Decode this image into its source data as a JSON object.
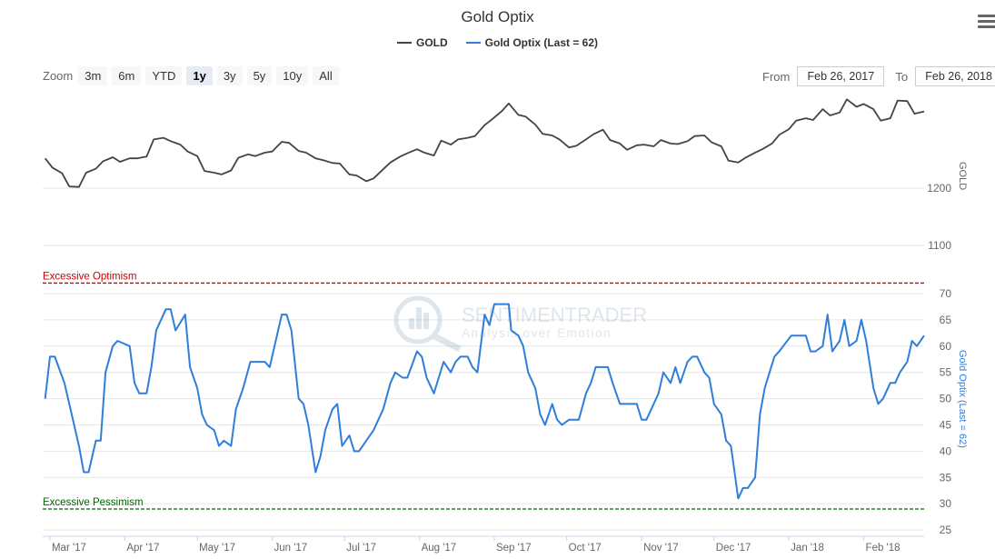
{
  "title": "Gold Optix",
  "legend": {
    "gold_label": "GOLD",
    "optix_label": "Gold Optix (Last = 62)"
  },
  "colors": {
    "gold": "#434348",
    "optix": "#2f7ed8",
    "optimism": "#cc0000",
    "pessimism": "#006600"
  },
  "zoom": {
    "label": "Zoom",
    "buttons": [
      "3m",
      "6m",
      "YTD",
      "1y",
      "3y",
      "5y",
      "10y",
      "All"
    ],
    "active": "1y"
  },
  "range": {
    "from_label": "From",
    "from_value": "Feb 26, 2017",
    "to_label": "To",
    "to_value": "Feb 26, 2018"
  },
  "watermark": {
    "name": "SENTIMENTRADER",
    "tagline": "Analysis over Emotion"
  },
  "menu_icon": "hamburger-menu-icon",
  "chart_data": {
    "type": "line",
    "x_tick_labels": [
      "Mar '17",
      "Apr '17",
      "May '17",
      "Jun '17",
      "Jul '17",
      "Aug '17",
      "Sep '17",
      "Oct '17",
      "Nov '17",
      "Dec '17",
      "Jan '18",
      "Feb '18"
    ],
    "upper_axis": {
      "label": "GOLD",
      "ticks": [
        1100,
        1200
      ],
      "range": [
        1050,
        1370
      ]
    },
    "lower_axis": {
      "label": "Gold Optix (Last = 62)",
      "ticks": [
        25,
        30,
        35,
        40,
        45,
        50,
        55,
        60,
        65,
        70
      ],
      "range": [
        25,
        70
      ]
    },
    "gold_series": [
      {
        "x": "2017-02-27",
        "y": 1252
      },
      {
        "x": "2017-03-02",
        "y": 1236
      },
      {
        "x": "2017-03-06",
        "y": 1226
      },
      {
        "x": "2017-03-09",
        "y": 1203
      },
      {
        "x": "2017-03-13",
        "y": 1202
      },
      {
        "x": "2017-03-16",
        "y": 1227
      },
      {
        "x": "2017-03-20",
        "y": 1234
      },
      {
        "x": "2017-03-23",
        "y": 1247
      },
      {
        "x": "2017-03-27",
        "y": 1254
      },
      {
        "x": "2017-03-30",
        "y": 1246
      },
      {
        "x": "2017-04-03",
        "y": 1252
      },
      {
        "x": "2017-04-06",
        "y": 1252
      },
      {
        "x": "2017-04-10",
        "y": 1255
      },
      {
        "x": "2017-04-13",
        "y": 1285
      },
      {
        "x": "2017-04-17",
        "y": 1288
      },
      {
        "x": "2017-04-20",
        "y": 1282
      },
      {
        "x": "2017-04-24",
        "y": 1276
      },
      {
        "x": "2017-04-27",
        "y": 1264
      },
      {
        "x": "2017-05-01",
        "y": 1256
      },
      {
        "x": "2017-05-04",
        "y": 1230
      },
      {
        "x": "2017-05-08",
        "y": 1227
      },
      {
        "x": "2017-05-11",
        "y": 1224
      },
      {
        "x": "2017-05-15",
        "y": 1231
      },
      {
        "x": "2017-05-18",
        "y": 1253
      },
      {
        "x": "2017-05-22",
        "y": 1259
      },
      {
        "x": "2017-05-25",
        "y": 1256
      },
      {
        "x": "2017-05-29",
        "y": 1262
      },
      {
        "x": "2017-06-01",
        "y": 1264
      },
      {
        "x": "2017-06-05",
        "y": 1281
      },
      {
        "x": "2017-06-08",
        "y": 1279
      },
      {
        "x": "2017-06-12",
        "y": 1265
      },
      {
        "x": "2017-06-15",
        "y": 1262
      },
      {
        "x": "2017-06-19",
        "y": 1252
      },
      {
        "x": "2017-06-22",
        "y": 1249
      },
      {
        "x": "2017-06-26",
        "y": 1244
      },
      {
        "x": "2017-06-29",
        "y": 1243
      },
      {
        "x": "2017-07-03",
        "y": 1224
      },
      {
        "x": "2017-07-06",
        "y": 1222
      },
      {
        "x": "2017-07-10",
        "y": 1212
      },
      {
        "x": "2017-07-13",
        "y": 1217
      },
      {
        "x": "2017-07-17",
        "y": 1233
      },
      {
        "x": "2017-07-20",
        "y": 1245
      },
      {
        "x": "2017-07-24",
        "y": 1255
      },
      {
        "x": "2017-07-27",
        "y": 1261
      },
      {
        "x": "2017-07-31",
        "y": 1268
      },
      {
        "x": "2017-08-03",
        "y": 1262
      },
      {
        "x": "2017-08-07",
        "y": 1257
      },
      {
        "x": "2017-08-10",
        "y": 1283
      },
      {
        "x": "2017-08-14",
        "y": 1276
      },
      {
        "x": "2017-08-17",
        "y": 1285
      },
      {
        "x": "2017-08-21",
        "y": 1288
      },
      {
        "x": "2017-08-24",
        "y": 1291
      },
      {
        "x": "2017-08-28",
        "y": 1310
      },
      {
        "x": "2017-08-31",
        "y": 1320
      },
      {
        "x": "2017-09-04",
        "y": 1334
      },
      {
        "x": "2017-09-07",
        "y": 1348
      },
      {
        "x": "2017-09-11",
        "y": 1328
      },
      {
        "x": "2017-09-14",
        "y": 1325
      },
      {
        "x": "2017-09-18",
        "y": 1311
      },
      {
        "x": "2017-09-21",
        "y": 1295
      },
      {
        "x": "2017-09-25",
        "y": 1292
      },
      {
        "x": "2017-09-28",
        "y": 1285
      },
      {
        "x": "2017-10-02",
        "y": 1271
      },
      {
        "x": "2017-10-05",
        "y": 1274
      },
      {
        "x": "2017-10-09",
        "y": 1285
      },
      {
        "x": "2017-10-12",
        "y": 1294
      },
      {
        "x": "2017-10-16",
        "y": 1302
      },
      {
        "x": "2017-10-19",
        "y": 1284
      },
      {
        "x": "2017-10-23",
        "y": 1278
      },
      {
        "x": "2017-10-26",
        "y": 1267
      },
      {
        "x": "2017-10-30",
        "y": 1275
      },
      {
        "x": "2017-11-02",
        "y": 1276
      },
      {
        "x": "2017-11-06",
        "y": 1273
      },
      {
        "x": "2017-11-09",
        "y": 1284
      },
      {
        "x": "2017-11-13",
        "y": 1278
      },
      {
        "x": "2017-11-16",
        "y": 1277
      },
      {
        "x": "2017-11-20",
        "y": 1282
      },
      {
        "x": "2017-11-23",
        "y": 1291
      },
      {
        "x": "2017-11-27",
        "y": 1292
      },
      {
        "x": "2017-11-30",
        "y": 1280
      },
      {
        "x": "2017-12-04",
        "y": 1273
      },
      {
        "x": "2017-12-07",
        "y": 1248
      },
      {
        "x": "2017-12-11",
        "y": 1245
      },
      {
        "x": "2017-12-14",
        "y": 1253
      },
      {
        "x": "2017-12-18",
        "y": 1262
      },
      {
        "x": "2017-12-21",
        "y": 1268
      },
      {
        "x": "2017-12-25",
        "y": 1278
      },
      {
        "x": "2017-12-28",
        "y": 1293
      },
      {
        "x": "2018-01-01",
        "y": 1303
      },
      {
        "x": "2018-01-04",
        "y": 1318
      },
      {
        "x": "2018-01-08",
        "y": 1322
      },
      {
        "x": "2018-01-11",
        "y": 1319
      },
      {
        "x": "2018-01-15",
        "y": 1338
      },
      {
        "x": "2018-01-18",
        "y": 1327
      },
      {
        "x": "2018-01-22",
        "y": 1332
      },
      {
        "x": "2018-01-25",
        "y": 1355
      },
      {
        "x": "2018-01-29",
        "y": 1342
      },
      {
        "x": "2018-02-01",
        "y": 1347
      },
      {
        "x": "2018-02-05",
        "y": 1338
      },
      {
        "x": "2018-02-08",
        "y": 1318
      },
      {
        "x": "2018-02-12",
        "y": 1322
      },
      {
        "x": "2018-02-15",
        "y": 1353
      },
      {
        "x": "2018-02-19",
        "y": 1352
      },
      {
        "x": "2018-02-22",
        "y": 1330
      },
      {
        "x": "2018-02-26",
        "y": 1334
      }
    ],
    "optix_series": [
      {
        "x": "2017-02-27",
        "y": 50
      },
      {
        "x": "2017-03-01",
        "y": 58
      },
      {
        "x": "2017-03-03",
        "y": 58
      },
      {
        "x": "2017-03-07",
        "y": 53
      },
      {
        "x": "2017-03-10",
        "y": 47
      },
      {
        "x": "2017-03-13",
        "y": 41
      },
      {
        "x": "2017-03-15",
        "y": 36
      },
      {
        "x": "2017-03-17",
        "y": 36
      },
      {
        "x": "2017-03-20",
        "y": 42
      },
      {
        "x": "2017-03-22",
        "y": 42
      },
      {
        "x": "2017-03-24",
        "y": 55
      },
      {
        "x": "2017-03-27",
        "y": 60
      },
      {
        "x": "2017-03-29",
        "y": 61
      },
      {
        "x": "2017-04-03",
        "y": 60
      },
      {
        "x": "2017-04-05",
        "y": 53
      },
      {
        "x": "2017-04-07",
        "y": 51
      },
      {
        "x": "2017-04-10",
        "y": 51
      },
      {
        "x": "2017-04-12",
        "y": 56
      },
      {
        "x": "2017-04-14",
        "y": 63
      },
      {
        "x": "2017-04-18",
        "y": 67
      },
      {
        "x": "2017-04-20",
        "y": 67
      },
      {
        "x": "2017-04-22",
        "y": 63
      },
      {
        "x": "2017-04-26",
        "y": 66
      },
      {
        "x": "2017-04-28",
        "y": 56
      },
      {
        "x": "2017-05-01",
        "y": 52
      },
      {
        "x": "2017-05-03",
        "y": 47
      },
      {
        "x": "2017-05-05",
        "y": 45
      },
      {
        "x": "2017-05-08",
        "y": 44
      },
      {
        "x": "2017-05-10",
        "y": 41
      },
      {
        "x": "2017-05-12",
        "y": 42
      },
      {
        "x": "2017-05-15",
        "y": 41
      },
      {
        "x": "2017-05-17",
        "y": 48
      },
      {
        "x": "2017-05-20",
        "y": 52
      },
      {
        "x": "2017-05-23",
        "y": 57
      },
      {
        "x": "2017-05-25",
        "y": 57
      },
      {
        "x": "2017-05-29",
        "y": 57
      },
      {
        "x": "2017-05-31",
        "y": 56
      },
      {
        "x": "2017-06-02",
        "y": 60
      },
      {
        "x": "2017-06-05",
        "y": 66
      },
      {
        "x": "2017-06-07",
        "y": 66
      },
      {
        "x": "2017-06-09",
        "y": 63
      },
      {
        "x": "2017-06-12",
        "y": 50
      },
      {
        "x": "2017-06-14",
        "y": 49
      },
      {
        "x": "2017-06-16",
        "y": 45
      },
      {
        "x": "2017-06-19",
        "y": 36
      },
      {
        "x": "2017-06-21",
        "y": 39
      },
      {
        "x": "2017-06-23",
        "y": 44
      },
      {
        "x": "2017-06-26",
        "y": 48
      },
      {
        "x": "2017-06-28",
        "y": 49
      },
      {
        "x": "2017-06-30",
        "y": 41
      },
      {
        "x": "2017-07-03",
        "y": 43
      },
      {
        "x": "2017-07-05",
        "y": 40
      },
      {
        "x": "2017-07-07",
        "y": 40
      },
      {
        "x": "2017-07-10",
        "y": 42
      },
      {
        "x": "2017-07-13",
        "y": 44
      },
      {
        "x": "2017-07-17",
        "y": 48
      },
      {
        "x": "2017-07-20",
        "y": 53
      },
      {
        "x": "2017-07-22",
        "y": 55
      },
      {
        "x": "2017-07-25",
        "y": 54
      },
      {
        "x": "2017-07-27",
        "y": 54
      },
      {
        "x": "2017-07-31",
        "y": 59
      },
      {
        "x": "2017-08-02",
        "y": 58
      },
      {
        "x": "2017-08-04",
        "y": 54
      },
      {
        "x": "2017-08-07",
        "y": 51
      },
      {
        "x": "2017-08-09",
        "y": 54
      },
      {
        "x": "2017-08-11",
        "y": 57
      },
      {
        "x": "2017-08-14",
        "y": 55
      },
      {
        "x": "2017-08-16",
        "y": 57
      },
      {
        "x": "2017-08-18",
        "y": 58
      },
      {
        "x": "2017-08-21",
        "y": 58
      },
      {
        "x": "2017-08-23",
        "y": 56
      },
      {
        "x": "2017-08-25",
        "y": 55
      },
      {
        "x": "2017-08-28",
        "y": 66
      },
      {
        "x": "2017-08-30",
        "y": 64
      },
      {
        "x": "2017-09-01",
        "y": 68
      },
      {
        "x": "2017-09-05",
        "y": 68
      },
      {
        "x": "2017-09-07",
        "y": 68
      },
      {
        "x": "2017-09-08",
        "y": 63
      },
      {
        "x": "2017-09-11",
        "y": 62
      },
      {
        "x": "2017-09-13",
        "y": 60
      },
      {
        "x": "2017-09-15",
        "y": 55
      },
      {
        "x": "2017-09-18",
        "y": 52
      },
      {
        "x": "2017-09-20",
        "y": 47
      },
      {
        "x": "2017-09-22",
        "y": 45
      },
      {
        "x": "2017-09-25",
        "y": 49
      },
      {
        "x": "2017-09-27",
        "y": 46
      },
      {
        "x": "2017-09-29",
        "y": 45
      },
      {
        "x": "2017-10-02",
        "y": 46
      },
      {
        "x": "2017-10-04",
        "y": 46
      },
      {
        "x": "2017-10-06",
        "y": 46
      },
      {
        "x": "2017-10-09",
        "y": 51
      },
      {
        "x": "2017-10-11",
        "y": 53
      },
      {
        "x": "2017-10-13",
        "y": 56
      },
      {
        "x": "2017-10-16",
        "y": 56
      },
      {
        "x": "2017-10-18",
        "y": 56
      },
      {
        "x": "2017-10-20",
        "y": 53
      },
      {
        "x": "2017-10-23",
        "y": 49
      },
      {
        "x": "2017-10-25",
        "y": 49
      },
      {
        "x": "2017-10-27",
        "y": 49
      },
      {
        "x": "2017-10-30",
        "y": 49
      },
      {
        "x": "2017-11-01",
        "y": 46
      },
      {
        "x": "2017-11-03",
        "y": 46
      },
      {
        "x": "2017-11-06",
        "y": 49
      },
      {
        "x": "2017-11-08",
        "y": 51
      },
      {
        "x": "2017-11-10",
        "y": 55
      },
      {
        "x": "2017-11-13",
        "y": 53
      },
      {
        "x": "2017-11-15",
        "y": 56
      },
      {
        "x": "2017-11-17",
        "y": 53
      },
      {
        "x": "2017-11-20",
        "y": 57
      },
      {
        "x": "2017-11-22",
        "y": 58
      },
      {
        "x": "2017-11-24",
        "y": 58
      },
      {
        "x": "2017-11-27",
        "y": 55
      },
      {
        "x": "2017-11-29",
        "y": 54
      },
      {
        "x": "2017-12-01",
        "y": 49
      },
      {
        "x": "2017-12-04",
        "y": 47
      },
      {
        "x": "2017-12-06",
        "y": 42
      },
      {
        "x": "2017-12-08",
        "y": 41
      },
      {
        "x": "2017-12-11",
        "y": 31
      },
      {
        "x": "2017-12-13",
        "y": 33
      },
      {
        "x": "2017-12-15",
        "y": 33
      },
      {
        "x": "2017-12-18",
        "y": 35
      },
      {
        "x": "2017-12-20",
        "y": 47
      },
      {
        "x": "2017-12-22",
        "y": 52
      },
      {
        "x": "2017-12-26",
        "y": 58
      },
      {
        "x": "2017-12-28",
        "y": 59
      },
      {
        "x": "2018-01-02",
        "y": 62
      },
      {
        "x": "2018-01-04",
        "y": 62
      },
      {
        "x": "2018-01-08",
        "y": 62
      },
      {
        "x": "2018-01-10",
        "y": 59
      },
      {
        "x": "2018-01-12",
        "y": 59
      },
      {
        "x": "2018-01-15",
        "y": 60
      },
      {
        "x": "2018-01-17",
        "y": 66
      },
      {
        "x": "2018-01-19",
        "y": 59
      },
      {
        "x": "2018-01-22",
        "y": 61
      },
      {
        "x": "2018-01-24",
        "y": 65
      },
      {
        "x": "2018-01-26",
        "y": 60
      },
      {
        "x": "2018-01-29",
        "y": 61
      },
      {
        "x": "2018-01-31",
        "y": 65
      },
      {
        "x": "2018-02-02",
        "y": 61
      },
      {
        "x": "2018-02-05",
        "y": 52
      },
      {
        "x": "2018-02-07",
        "y": 49
      },
      {
        "x": "2018-02-09",
        "y": 50
      },
      {
        "x": "2018-02-12",
        "y": 53
      },
      {
        "x": "2018-02-14",
        "y": 53
      },
      {
        "x": "2018-02-16",
        "y": 55
      },
      {
        "x": "2018-02-19",
        "y": 57
      },
      {
        "x": "2018-02-21",
        "y": 61
      },
      {
        "x": "2018-02-23",
        "y": 60
      },
      {
        "x": "2018-02-26",
        "y": 62
      }
    ],
    "reference_lines": [
      {
        "label": "Excessive Optimism",
        "value": 72,
        "color": "#cc0000"
      },
      {
        "label": "Excessive Pessimism",
        "value": 29,
        "color": "#006600"
      }
    ],
    "grid": true,
    "legend_position": "top-center"
  }
}
